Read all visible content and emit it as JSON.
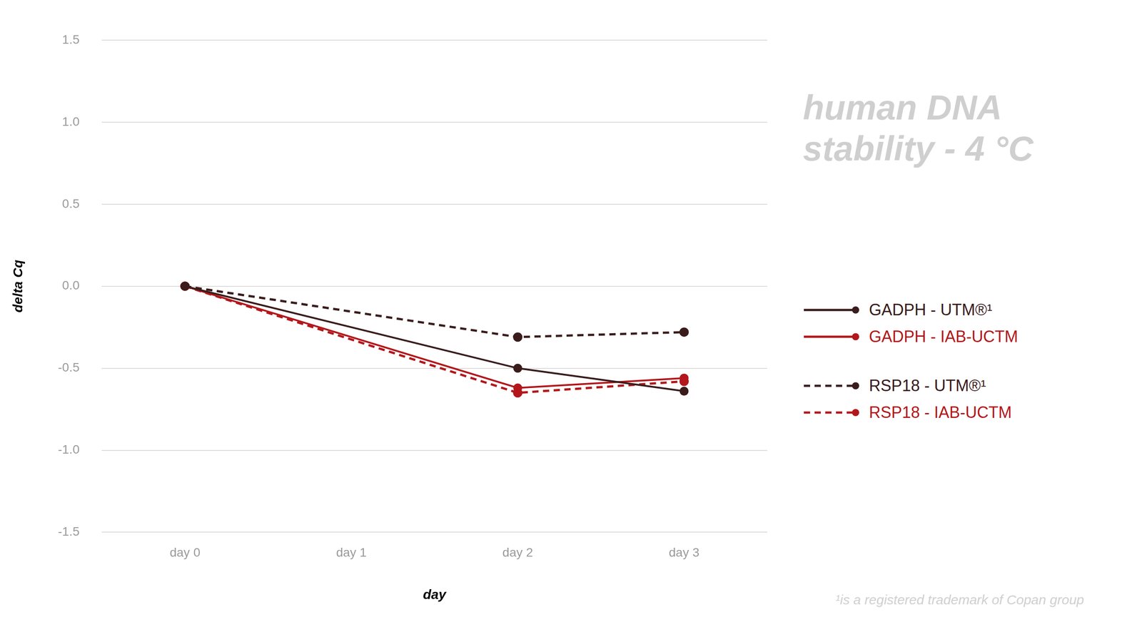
{
  "chart_data": {
    "type": "line",
    "title": "human DNA stability - 4 °C",
    "x_label": "day",
    "y_label": "delta Cq",
    "note": "¹is a registered trademark of Copan group",
    "categories": [
      "day 0",
      "day 1",
      "day 2",
      "day 3"
    ],
    "series": [
      {
        "name": "GADPH - UTM®¹",
        "color": "#3a1c1c",
        "line_style": "solid",
        "marker": "circle",
        "values": [
          0,
          null,
          -0.5,
          -0.64
        ]
      },
      {
        "name": "GADPH - IAB-UCTM",
        "color": "#b3171b",
        "line_style": "solid",
        "marker": "circle",
        "values": [
          0,
          null,
          -0.62,
          -0.56
        ]
      },
      {
        "name": "RSP18 - UTM®¹",
        "color": "#3a1c1c",
        "line_style": "dashed",
        "marker": "circle",
        "values": [
          0,
          null,
          -0.31,
          -0.28
        ]
      },
      {
        "name": "RSP18 - IAB-UCTM",
        "color": "#b3171b",
        "line_style": "dashed",
        "marker": "circle",
        "values": [
          0,
          null,
          -0.65,
          -0.58
        ]
      }
    ],
    "ylim": [
      -1.5,
      1.5
    ],
    "yticks": [
      -1.5,
      {
        "value": -1,
        "label": "-1.0"
      },
      -0.5,
      {
        "value": 0,
        "label": "0.0"
      },
      0.5,
      {
        "value": 1,
        "label": "1.0"
      },
      1.5
    ],
    "grid": true,
    "legend": "right"
  }
}
